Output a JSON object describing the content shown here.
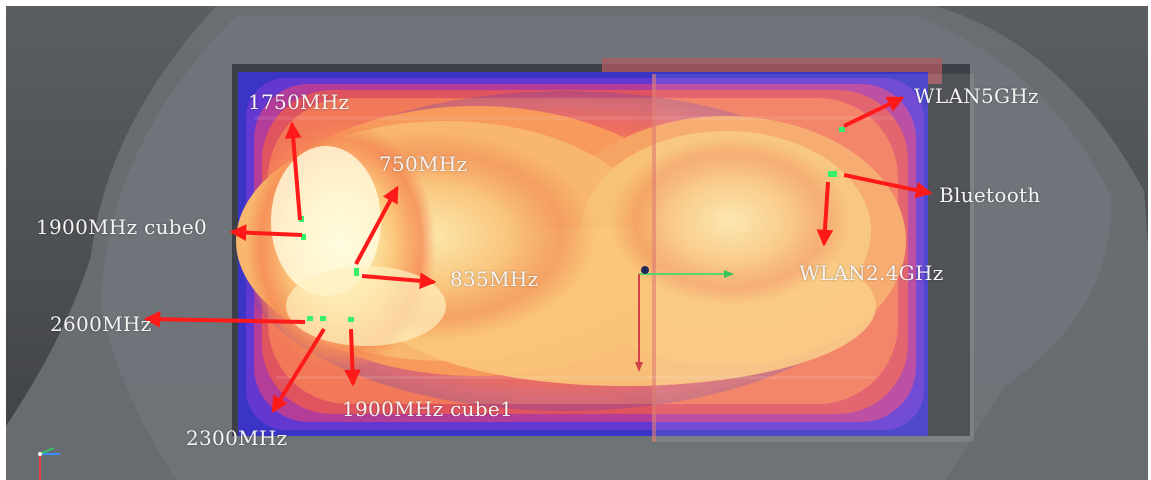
{
  "viewport": {
    "background_color": "#4f5255",
    "phantom_color": "#70767b",
    "arrow_color": "#ff1a1a",
    "port_marker_color": "#37f06a"
  },
  "labels": {
    "f1750": "1750MHz",
    "f750": "750MHz",
    "f1900_cube0": "1900MHz cube0",
    "f835": "835MHz",
    "f2600": "2600MHz",
    "f1900_cube1": "1900MHz cube1",
    "f2300": "2300MHz",
    "wlan5": "WLAN5GHz",
    "bluetooth": "Bluetooth",
    "wlan24": "WLAN2.4GHz"
  },
  "icons": {
    "axis_triad": "xyz-axis-triad-icon",
    "coordinate_origin": "coordinate-origin-icon"
  }
}
